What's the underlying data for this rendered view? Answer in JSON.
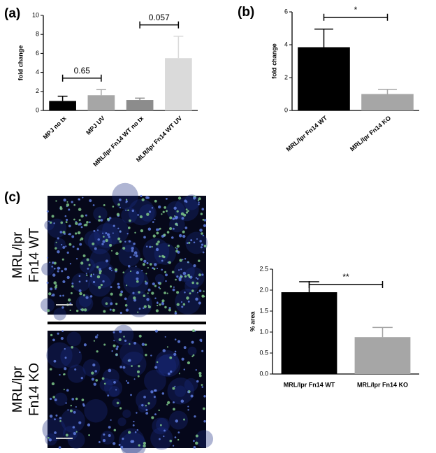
{
  "panels": [
    "(a)",
    "(b)",
    "(c)"
  ],
  "images": [
    {
      "label": [
        "MRL/lpr",
        "Fn14 WT"
      ]
    },
    {
      "label": [
        "MRL/lpr",
        "Fn14 KO"
      ]
    }
  ],
  "chart_data": [
    {
      "type": "bar",
      "ylabel": "fold change",
      "categories": [
        "MPJ no tx",
        "MPJ UV",
        "MRL/lpr Fn14 WT no tx",
        "MLR/lpr Fn14 WT UV"
      ],
      "values": [
        1.0,
        1.6,
        1.1,
        5.5
      ],
      "errors": [
        0.5,
        0.6,
        0.2,
        2.3
      ],
      "colors": [
        "#000000",
        "#a6a6a6",
        "#8c8c8c",
        "#dadada"
      ],
      "ylim": [
        0,
        10
      ],
      "yticks": [
        0,
        2,
        4,
        6,
        8,
        10
      ],
      "brackets": [
        {
          "label": "0.65",
          "from": 0,
          "to": 1
        },
        {
          "label": "0.057",
          "from": 2,
          "to": 3
        }
      ]
    },
    {
      "type": "bar",
      "ylabel": "fold change",
      "categories": [
        "MRL/lpr Fn14 WT",
        "MRL/lpr Fn14 KO"
      ],
      "values": [
        3.85,
        1.0
      ],
      "errors": [
        1.1,
        0.28
      ],
      "colors": [
        "#000000",
        "#a6a6a6"
      ],
      "ylim": [
        0,
        6
      ],
      "yticks": [
        0,
        2,
        4,
        6
      ],
      "brackets": [
        {
          "label": "*",
          "from": 0,
          "to": 1
        }
      ]
    },
    {
      "type": "bar",
      "ylabel": "% area",
      "categories": [
        "MRL/lpr Fn14 WT",
        "MRL/lpr Fn14 KO"
      ],
      "values": [
        1.95,
        0.88
      ],
      "errors": [
        0.25,
        0.23
      ],
      "colors": [
        "#000000",
        "#a6a6a6"
      ],
      "ylim": [
        0,
        2.5
      ],
      "yticks": [
        {
          "value": 0,
          "label": "0.0"
        },
        {
          "value": 0.5,
          "label": "0.5"
        },
        {
          "value": 1,
          "label": "1.0"
        },
        {
          "value": 1.5,
          "label": "1.5"
        },
        {
          "value": 2,
          "label": "2.0"
        },
        {
          "value": 2.5,
          "label": "2.5"
        }
      ],
      "brackets": [
        {
          "label": "**",
          "from": 0,
          "to": 1
        }
      ]
    }
  ]
}
